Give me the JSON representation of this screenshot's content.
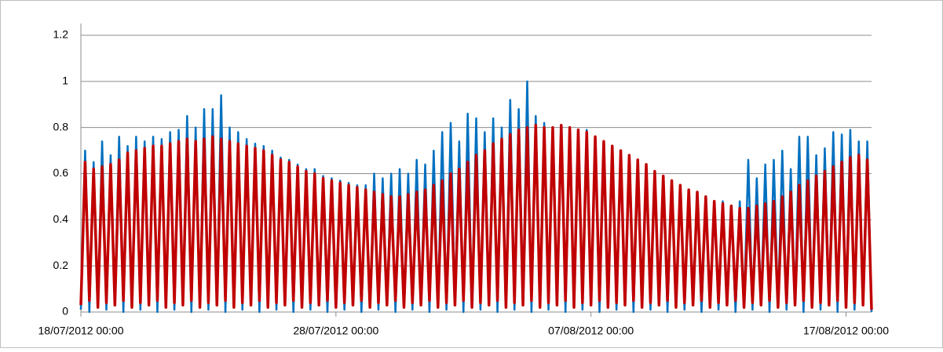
{
  "chart_data": {
    "type": "line",
    "x": [
      0,
      4,
      8,
      12,
      16,
      20,
      24,
      28,
      32,
      36,
      40,
      44,
      48,
      52,
      56,
      60,
      64,
      68,
      72,
      76,
      80,
      84,
      88,
      92,
      96,
      100,
      104,
      108,
      112,
      116,
      120,
      124,
      128,
      132,
      136,
      140,
      144,
      148,
      152,
      156,
      160,
      164,
      168,
      172,
      176,
      180,
      184,
      188,
      192,
      196,
      200,
      204,
      208,
      212,
      216,
      220,
      224,
      228,
      232,
      236,
      240,
      244,
      248,
      252,
      256,
      260,
      264,
      268,
      272,
      276,
      280,
      284,
      288,
      292,
      296,
      300,
      304,
      308,
      312,
      316,
      320,
      324,
      328,
      332,
      336,
      340,
      344,
      348,
      352,
      356,
      360,
      364,
      368,
      372,
      376,
      380,
      384,
      388,
      392,
      396,
      400,
      404,
      408,
      412,
      416,
      420,
      424,
      428,
      432,
      436,
      440,
      444,
      448,
      452,
      456,
      460,
      464,
      468,
      472,
      476,
      480,
      484,
      488,
      492,
      496,
      500,
      504,
      508,
      512,
      516,
      520,
      524,
      528,
      532,
      536,
      540,
      544,
      548,
      552,
      556,
      560,
      564,
      568,
      572,
      576,
      580,
      584,
      588,
      592,
      596,
      600,
      604,
      608,
      612,
      616,
      620,
      624,
      628,
      632,
      636,
      640,
      644,
      648,
      652,
      656,
      660,
      664,
      668,
      672,
      676,
      680,
      684,
      688,
      692,
      696,
      700,
      704,
      708,
      712,
      716,
      720,
      724,
      728,
      732,
      736,
      740,
      744
    ],
    "series": [
      {
        "color": "#0070c0",
        "values": [
          0.01,
          0.7,
          0.0,
          0.65,
          0.02,
          0.74,
          0.01,
          0.68,
          0.03,
          0.76,
          0.0,
          0.72,
          0.02,
          0.76,
          0.01,
          0.74,
          0.03,
          0.76,
          0.0,
          0.75,
          0.02,
          0.78,
          0.01,
          0.79,
          0.03,
          0.85,
          0.0,
          0.8,
          0.02,
          0.88,
          0.01,
          0.88,
          0.03,
          0.94,
          0.0,
          0.8,
          0.02,
          0.78,
          0.01,
          0.75,
          0.03,
          0.73,
          0.0,
          0.72,
          0.02,
          0.7,
          0.01,
          0.67,
          0.03,
          0.66,
          0.0,
          0.64,
          0.02,
          0.62,
          0.01,
          0.62,
          0.03,
          0.59,
          0.0,
          0.58,
          0.02,
          0.57,
          0.01,
          0.56,
          0.03,
          0.55,
          0.0,
          0.55,
          0.02,
          0.6,
          0.01,
          0.58,
          0.03,
          0.6,
          0.0,
          0.62,
          0.02,
          0.6,
          0.01,
          0.66,
          0.03,
          0.64,
          0.0,
          0.7,
          0.02,
          0.78,
          0.01,
          0.82,
          0.03,
          0.74,
          0.0,
          0.86,
          0.02,
          0.84,
          0.01,
          0.78,
          0.03,
          0.84,
          0.0,
          0.8,
          0.02,
          0.92,
          0.01,
          0.88,
          0.03,
          1.0,
          0.0,
          0.85,
          0.02,
          0.82,
          0.01,
          0.8,
          0.03,
          0.81,
          0.0,
          0.79,
          0.02,
          0.78,
          0.01,
          0.79,
          0.03,
          0.75,
          0.0,
          0.73,
          0.02,
          0.71,
          0.01,
          0.69,
          0.03,
          0.67,
          0.0,
          0.65,
          0.02,
          0.63,
          0.01,
          0.6,
          0.03,
          0.58,
          0.0,
          0.56,
          0.02,
          0.54,
          0.01,
          0.52,
          0.03,
          0.51,
          0.0,
          0.49,
          0.02,
          0.48,
          0.01,
          0.48,
          0.03,
          0.46,
          0.0,
          0.48,
          0.02,
          0.66,
          0.01,
          0.58,
          0.03,
          0.64,
          0.0,
          0.66,
          0.02,
          0.7,
          0.01,
          0.62,
          0.03,
          0.76,
          0.0,
          0.76,
          0.02,
          0.68,
          0.01,
          0.71,
          0.03,
          0.78,
          0.0,
          0.77,
          0.02,
          0.79,
          0.01,
          0.74,
          0.03,
          0.74,
          0.0
        ]
      },
      {
        "color": "#c00000",
        "values": [
          0.03,
          0.65,
          0.05,
          0.62,
          0.02,
          0.63,
          0.04,
          0.64,
          0.03,
          0.66,
          0.05,
          0.69,
          0.02,
          0.7,
          0.04,
          0.71,
          0.03,
          0.72,
          0.05,
          0.72,
          0.02,
          0.73,
          0.04,
          0.74,
          0.03,
          0.75,
          0.05,
          0.74,
          0.02,
          0.75,
          0.04,
          0.76,
          0.03,
          0.75,
          0.05,
          0.74,
          0.02,
          0.73,
          0.04,
          0.72,
          0.03,
          0.71,
          0.05,
          0.7,
          0.02,
          0.68,
          0.04,
          0.66,
          0.03,
          0.65,
          0.05,
          0.63,
          0.02,
          0.61,
          0.04,
          0.6,
          0.03,
          0.58,
          0.05,
          0.57,
          0.02,
          0.56,
          0.04,
          0.55,
          0.03,
          0.54,
          0.05,
          0.53,
          0.02,
          0.52,
          0.04,
          0.51,
          0.03,
          0.5,
          0.05,
          0.5,
          0.02,
          0.51,
          0.04,
          0.52,
          0.03,
          0.53,
          0.05,
          0.55,
          0.02,
          0.57,
          0.04,
          0.6,
          0.03,
          0.62,
          0.05,
          0.65,
          0.02,
          0.68,
          0.04,
          0.7,
          0.03,
          0.73,
          0.05,
          0.75,
          0.02,
          0.77,
          0.04,
          0.79,
          0.03,
          0.8,
          0.05,
          0.81,
          0.02,
          0.8,
          0.04,
          0.8,
          0.03,
          0.81,
          0.05,
          0.8,
          0.02,
          0.79,
          0.04,
          0.78,
          0.03,
          0.76,
          0.05,
          0.74,
          0.02,
          0.72,
          0.04,
          0.7,
          0.03,
          0.68,
          0.05,
          0.66,
          0.02,
          0.64,
          0.04,
          0.61,
          0.03,
          0.59,
          0.05,
          0.57,
          0.02,
          0.55,
          0.04,
          0.53,
          0.03,
          0.52,
          0.05,
          0.5,
          0.02,
          0.48,
          0.04,
          0.47,
          0.03,
          0.46,
          0.05,
          0.45,
          0.02,
          0.45,
          0.04,
          0.46,
          0.03,
          0.47,
          0.05,
          0.48,
          0.02,
          0.5,
          0.04,
          0.52,
          0.03,
          0.55,
          0.05,
          0.57,
          0.02,
          0.59,
          0.04,
          0.61,
          0.03,
          0.63,
          0.05,
          0.65,
          0.02,
          0.67,
          0.04,
          0.68,
          0.03,
          0.66,
          0.01
        ]
      }
    ],
    "xlim": [
      0,
      744
    ],
    "xticks": [
      {
        "value": 0,
        "label": "18/07/2012 00:00"
      },
      {
        "value": 240,
        "label": "28/07/2012 00:00"
      },
      {
        "value": 480,
        "label": "07/08/2012 00:00"
      },
      {
        "value": 720,
        "label": "17/08/2012 00:00"
      }
    ],
    "ylim": [
      0,
      1.2
    ],
    "yticks": [
      0,
      0.2,
      0.4,
      0.6,
      0.8,
      1,
      1.2
    ],
    "grid": true
  }
}
